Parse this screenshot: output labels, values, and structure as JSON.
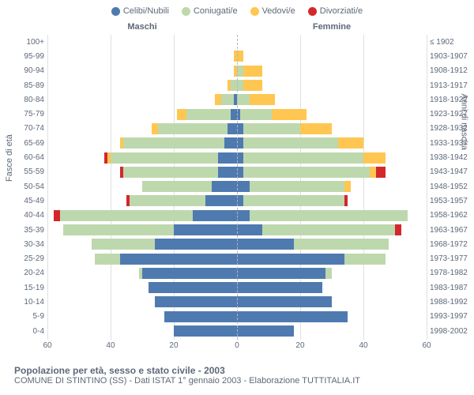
{
  "legend": [
    {
      "label": "Celibi/Nubili",
      "color": "#4f7ab0"
    },
    {
      "label": "Coniugati/e",
      "color": "#bed8ae"
    },
    {
      "label": "Vedovi/e",
      "color": "#ffc651"
    },
    {
      "label": "Divorziati/e",
      "color": "#d4272c"
    }
  ],
  "header_left": "Maschi",
  "header_right": "Femmine",
  "yaxis_left_label": "Fasce di età",
  "yaxis_right_label": "Anni di nascita",
  "title_main": "Popolazione per età, sesso e stato civile - 2003",
  "title_sub": "COMUNE DI STINTINO (SS) - Dati ISTAT 1° gennaio 2003 - Elaborazione TUTTITALIA.IT",
  "xmax": 60,
  "xticks": [
    60,
    40,
    20,
    0,
    20,
    40,
    60
  ],
  "colors": {
    "single": "#4f7ab0",
    "married": "#bed8ae",
    "widowed": "#ffc651",
    "divorced": "#d4272c",
    "grid": "#e0e0e0",
    "centerline": "#b0b5be",
    "text": "#5d6878",
    "bg": "#ffffff"
  },
  "rows": [
    {
      "age": "100+",
      "year": "≤ 1902",
      "m": {
        "s": 0,
        "c": 0,
        "v": 0,
        "d": 0
      },
      "f": {
        "s": 0,
        "c": 0,
        "v": 0,
        "d": 0
      }
    },
    {
      "age": "95-99",
      "year": "1903-1907",
      "m": {
        "s": 0,
        "c": 0,
        "v": 1,
        "d": 0
      },
      "f": {
        "s": 0,
        "c": 0,
        "v": 2,
        "d": 0
      }
    },
    {
      "age": "90-94",
      "year": "1908-1912",
      "m": {
        "s": 0,
        "c": 0,
        "v": 1,
        "d": 0
      },
      "f": {
        "s": 0,
        "c": 2,
        "v": 6,
        "d": 0
      }
    },
    {
      "age": "85-89",
      "year": "1913-1917",
      "m": {
        "s": 0,
        "c": 2,
        "v": 1,
        "d": 0
      },
      "f": {
        "s": 0,
        "c": 2,
        "v": 6,
        "d": 0
      }
    },
    {
      "age": "80-84",
      "year": "1918-1922",
      "m": {
        "s": 1,
        "c": 4,
        "v": 2,
        "d": 0
      },
      "f": {
        "s": 0,
        "c": 4,
        "v": 8,
        "d": 0
      }
    },
    {
      "age": "75-79",
      "year": "1923-1927",
      "m": {
        "s": 2,
        "c": 14,
        "v": 3,
        "d": 0
      },
      "f": {
        "s": 1,
        "c": 10,
        "v": 11,
        "d": 0
      }
    },
    {
      "age": "70-74",
      "year": "1928-1932",
      "m": {
        "s": 3,
        "c": 22,
        "v": 2,
        "d": 0
      },
      "f": {
        "s": 2,
        "c": 18,
        "v": 10,
        "d": 0
      }
    },
    {
      "age": "65-69",
      "year": "1933-1937",
      "m": {
        "s": 4,
        "c": 32,
        "v": 1,
        "d": 0
      },
      "f": {
        "s": 2,
        "c": 30,
        "v": 8,
        "d": 0
      }
    },
    {
      "age": "60-64",
      "year": "1938-1942",
      "m": {
        "s": 6,
        "c": 34,
        "v": 1,
        "d": 1
      },
      "f": {
        "s": 2,
        "c": 38,
        "v": 7,
        "d": 0
      }
    },
    {
      "age": "55-59",
      "year": "1943-1947",
      "m": {
        "s": 6,
        "c": 30,
        "v": 0,
        "d": 1
      },
      "f": {
        "s": 2,
        "c": 40,
        "v": 2,
        "d": 3
      }
    },
    {
      "age": "50-54",
      "year": "1948-1952",
      "m": {
        "s": 8,
        "c": 22,
        "v": 0,
        "d": 0
      },
      "f": {
        "s": 4,
        "c": 30,
        "v": 2,
        "d": 0
      }
    },
    {
      "age": "45-49",
      "year": "1953-1957",
      "m": {
        "s": 10,
        "c": 24,
        "v": 0,
        "d": 1
      },
      "f": {
        "s": 2,
        "c": 32,
        "v": 0,
        "d": 1
      }
    },
    {
      "age": "40-44",
      "year": "1958-1962",
      "m": {
        "s": 14,
        "c": 42,
        "v": 0,
        "d": 2
      },
      "f": {
        "s": 4,
        "c": 50,
        "v": 0,
        "d": 0
      }
    },
    {
      "age": "35-39",
      "year": "1963-1967",
      "m": {
        "s": 20,
        "c": 35,
        "v": 0,
        "d": 0
      },
      "f": {
        "s": 8,
        "c": 42,
        "v": 0,
        "d": 2
      }
    },
    {
      "age": "30-34",
      "year": "1968-1972",
      "m": {
        "s": 26,
        "c": 20,
        "v": 0,
        "d": 0
      },
      "f": {
        "s": 18,
        "c": 30,
        "v": 0,
        "d": 0
      }
    },
    {
      "age": "25-29",
      "year": "1973-1977",
      "m": {
        "s": 37,
        "c": 8,
        "v": 0,
        "d": 0
      },
      "f": {
        "s": 34,
        "c": 13,
        "v": 0,
        "d": 0
      }
    },
    {
      "age": "20-24",
      "year": "1978-1982",
      "m": {
        "s": 30,
        "c": 1,
        "v": 0,
        "d": 0
      },
      "f": {
        "s": 28,
        "c": 2,
        "v": 0,
        "d": 0
      }
    },
    {
      "age": "15-19",
      "year": "1983-1987",
      "m": {
        "s": 28,
        "c": 0,
        "v": 0,
        "d": 0
      },
      "f": {
        "s": 27,
        "c": 0,
        "v": 0,
        "d": 0
      }
    },
    {
      "age": "10-14",
      "year": "1988-1992",
      "m": {
        "s": 26,
        "c": 0,
        "v": 0,
        "d": 0
      },
      "f": {
        "s": 30,
        "c": 0,
        "v": 0,
        "d": 0
      }
    },
    {
      "age": "5-9",
      "year": "1993-1997",
      "m": {
        "s": 23,
        "c": 0,
        "v": 0,
        "d": 0
      },
      "f": {
        "s": 35,
        "c": 0,
        "v": 0,
        "d": 0
      }
    },
    {
      "age": "0-4",
      "year": "1998-2002",
      "m": {
        "s": 20,
        "c": 0,
        "v": 0,
        "d": 0
      },
      "f": {
        "s": 18,
        "c": 0,
        "v": 0,
        "d": 0
      }
    }
  ]
}
